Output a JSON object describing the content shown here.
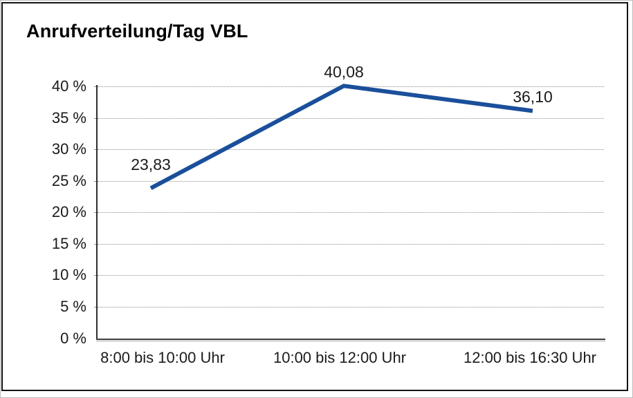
{
  "chart_data": {
    "type": "line",
    "title": "Anrufverteilung/Tag VBL",
    "categories": [
      "8:00 bis 10:00 Uhr",
      "10:00 bis 12:00 Uhr",
      "12:00 bis 16:30 Uhr"
    ],
    "values": [
      23.83,
      40.08,
      36.1
    ],
    "data_labels": [
      "23,83",
      "40,08",
      "36,10"
    ],
    "ylim": [
      0,
      40
    ],
    "ytick_step": 5,
    "ytick_labels": [
      "0 %",
      "5 %",
      "10 %",
      "15 %",
      "20 %",
      "25 %",
      "30 %",
      "35 %",
      "40 %"
    ],
    "xlabel": "",
    "ylabel": "",
    "grid": "horizontal-dotted",
    "legend": "none",
    "line_color": "#1A4F9B",
    "text_color": "#1a1a1a",
    "gridline_color": "#8c8c8c",
    "axis_color": "#2e2e2e",
    "background": "#ffffff",
    "border_color": "#121212"
  }
}
